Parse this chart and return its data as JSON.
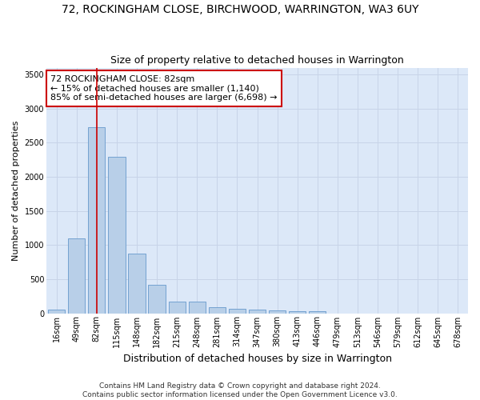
{
  "title": "72, ROCKINGHAM CLOSE, BIRCHWOOD, WARRINGTON, WA3 6UY",
  "subtitle": "Size of property relative to detached houses in Warrington",
  "xlabel": "Distribution of detached houses by size in Warrington",
  "ylabel": "Number of detached properties",
  "categories": [
    "16sqm",
    "49sqm",
    "82sqm",
    "115sqm",
    "148sqm",
    "182sqm",
    "215sqm",
    "248sqm",
    "281sqm",
    "314sqm",
    "347sqm",
    "380sqm",
    "413sqm",
    "446sqm",
    "479sqm",
    "513sqm",
    "546sqm",
    "579sqm",
    "612sqm",
    "645sqm",
    "678sqm"
  ],
  "values": [
    55,
    1100,
    2730,
    2290,
    870,
    420,
    170,
    165,
    90,
    65,
    50,
    40,
    30,
    25,
    0,
    0,
    0,
    0,
    0,
    0,
    0
  ],
  "bar_color": "#b8cfe8",
  "bar_edge_color": "#6699cc",
  "highlight_bar_index": 2,
  "highlight_line_color": "#cc0000",
  "annotation_text": "72 ROCKINGHAM CLOSE: 82sqm\n← 15% of detached houses are smaller (1,140)\n85% of semi-detached houses are larger (6,698) →",
  "annotation_box_color": "#ffffff",
  "annotation_box_edge": "#cc0000",
  "ylim": [
    0,
    3600
  ],
  "yticks": [
    0,
    500,
    1000,
    1500,
    2000,
    2500,
    3000,
    3500
  ],
  "grid_color": "#c8d4e8",
  "bg_color": "#dce8f8",
  "footer": "Contains HM Land Registry data © Crown copyright and database right 2024.\nContains public sector information licensed under the Open Government Licence v3.0.",
  "title_fontsize": 10,
  "subtitle_fontsize": 9,
  "xlabel_fontsize": 9,
  "ylabel_fontsize": 8,
  "tick_fontsize": 7,
  "footer_fontsize": 6.5,
  "annotation_fontsize": 8
}
